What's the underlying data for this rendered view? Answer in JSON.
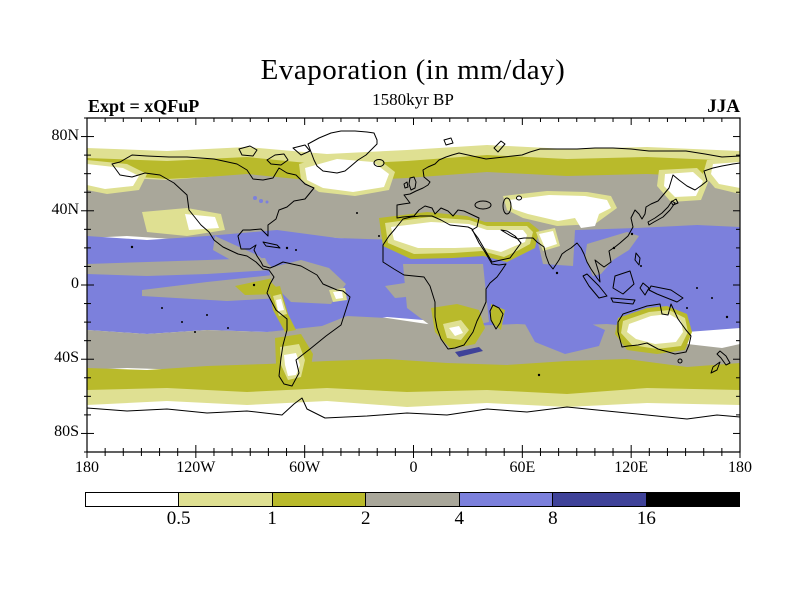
{
  "title": "Evaporation (in mm/day)",
  "subtitle": "1580kyr BP",
  "experiment_label": "Expt = xQFuP",
  "season_label": "JJA",
  "palette": {
    "level-0": "#ffffff",
    "level-1": "#dfe092",
    "level-2": "#b9ba2b",
    "level-3": "#a9a79a",
    "level-4": "#7c80dc",
    "level-5": "#3f4299",
    "level-6": "#000000",
    "coast": "#000000",
    "frame": "#000000"
  },
  "chart_data": {
    "type": "heatmap",
    "title": "Evaporation (in mm/day)",
    "subtitle": "1580kyr BP",
    "experiment": "xQFuP",
    "season": "JJA",
    "units": "mm/day",
    "projection": "global equirectangular latitude-longitude map with filled contours and coastlines",
    "lon_range": [
      -180,
      180
    ],
    "lat_range": [
      -90,
      90
    ],
    "lon_ticks": [
      {
        "label": "180",
        "value": -180
      },
      {
        "label": "120W",
        "value": -120
      },
      {
        "label": "60W",
        "value": -60
      },
      {
        "label": "0",
        "value": 0
      },
      {
        "label": "60E",
        "value": 60
      },
      {
        "label": "120E",
        "value": 120
      },
      {
        "label": "180",
        "value": 180
      }
    ],
    "lat_ticks": [
      {
        "label": "80N",
        "value": 80
      },
      {
        "label": "40N",
        "value": 40
      },
      {
        "label": "0",
        "value": 0
      },
      {
        "label": "40S",
        "value": -40
      },
      {
        "label": "80S",
        "value": -80
      }
    ],
    "minor_tick_interval_deg": 10,
    "contour_levels_mm_per_day": [
      0.5,
      1,
      2,
      4,
      8,
      16
    ],
    "colorbar": {
      "boundary_labels": [
        "0.5",
        "1",
        "2",
        "4",
        "8",
        "16"
      ],
      "segments": [
        {
          "range": "< 0.5",
          "color": "#ffffff"
        },
        {
          "range": "0.5 - 1",
          "color": "#dfe092"
        },
        {
          "range": "1 - 2",
          "color": "#b9ba2b"
        },
        {
          "range": "2 - 4",
          "color": "#a9a79a"
        },
        {
          "range": "4 - 8",
          "color": "#7c80dc"
        },
        {
          "range": "8 - 16",
          "color": "#3f4299"
        },
        {
          "range": "> 16",
          "color": "#000000"
        }
      ]
    },
    "pattern_summary": "Evaporation of 4-8 mm/day (blue) over subtropical and tropical oceans; 2-4 mm/day (grey) over mid-latitude oceans, continents and equatorial cold tongues; 1-2 mm/day (olive) bands near 60N and 45-60S and around deserts; below 0.5 mm/day (white) over polar regions, the Sahara, Arabia, central Asia, southwest North America and interior Australia."
  }
}
